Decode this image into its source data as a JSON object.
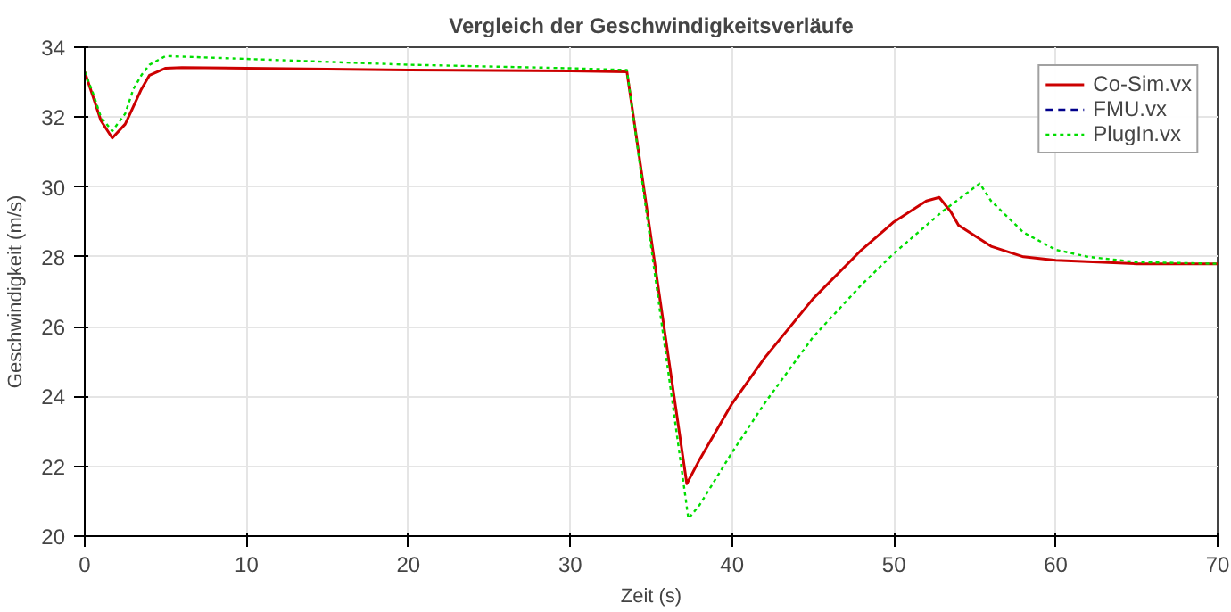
{
  "chart_data": {
    "type": "line",
    "title": "Vergleich der Geschwindigkeitsverläufe",
    "xlabel": "Zeit (s)",
    "ylabel": "Geschwindigkeit (m/s)",
    "xlim": [
      0,
      70
    ],
    "ylim": [
      20,
      34
    ],
    "xticks": [
      0,
      10,
      20,
      30,
      40,
      50,
      60,
      70
    ],
    "yticks": [
      20,
      22,
      24,
      26,
      28,
      30,
      32,
      34
    ],
    "grid": true,
    "legend": "top right",
    "marker": "none",
    "series": [
      {
        "name": "Co-Sim.vx",
        "color": "#cc0000",
        "line_style": "solid",
        "x": [
          0,
          0.5,
          1,
          1.7,
          2.5,
          3,
          3.5,
          4,
          5,
          6,
          10,
          20,
          30,
          33.5,
          37.2,
          38,
          40,
          42,
          45,
          48,
          50,
          52,
          52.8,
          53.5,
          54,
          56,
          58,
          60,
          65,
          70
        ],
        "values": [
          33.3,
          32.6,
          31.9,
          31.4,
          31.8,
          32.3,
          32.8,
          33.2,
          33.4,
          33.42,
          33.4,
          33.35,
          33.32,
          33.3,
          21.5,
          22.2,
          23.8,
          25.1,
          26.8,
          28.2,
          29.0,
          29.6,
          29.7,
          29.3,
          28.9,
          28.3,
          28.0,
          27.9,
          27.8,
          27.8
        ]
      },
      {
        "name": "FMU.vx",
        "color": "#00008b",
        "line_style": "dashed"
      },
      {
        "name": "PlugIn.vx",
        "color": "#00dd00",
        "line_style": "dotted",
        "x": [
          0,
          0.5,
          1,
          1.7,
          2.5,
          3,
          3.5,
          4,
          5,
          8,
          20,
          30,
          33.5,
          37.3,
          38,
          40,
          42,
          45,
          48,
          50,
          53,
          55.3,
          56,
          58,
          60,
          62,
          65,
          70
        ],
        "values": [
          33.3,
          32.7,
          32.0,
          31.6,
          32.1,
          32.8,
          33.2,
          33.5,
          33.75,
          33.7,
          33.5,
          33.4,
          33.35,
          20.5,
          20.9,
          22.4,
          23.8,
          25.7,
          27.2,
          28.1,
          29.3,
          30.1,
          29.6,
          28.7,
          28.2,
          28.0,
          27.85,
          27.8
        ]
      }
    ]
  }
}
